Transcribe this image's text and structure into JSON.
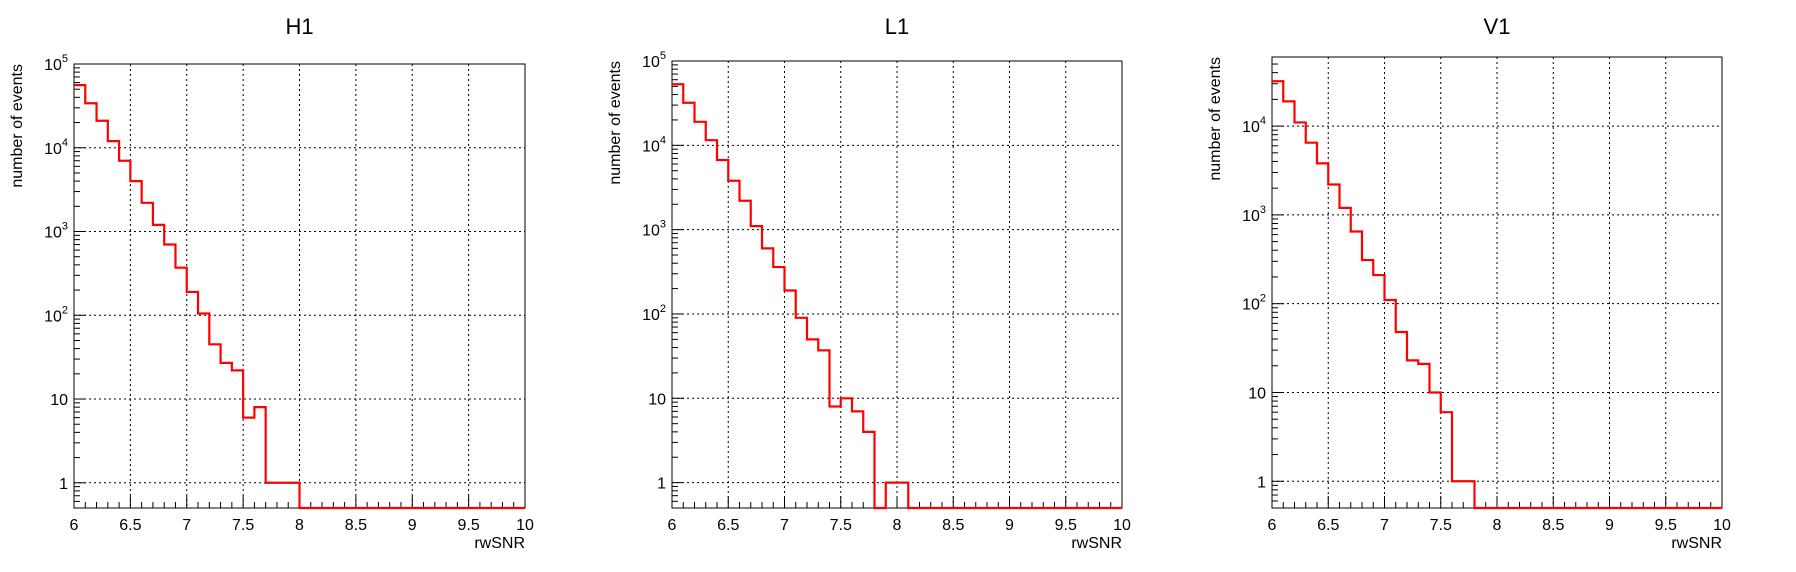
{
  "chart_data": [
    {
      "type": "line",
      "title": "H1",
      "xlabel": "rwSNR",
      "ylabel": "number of events",
      "xlim": [
        6,
        10
      ],
      "ylim": [
        0.5,
        100000
      ],
      "yscale": "log",
      "grid": true,
      "color": "#ff0000",
      "x_ticks": [
        "6",
        "6.5",
        "7",
        "7.5",
        "8",
        "8.5",
        "9",
        "9.5",
        "10"
      ],
      "y_ticks": [
        {
          "base": "1",
          "exp": ""
        },
        {
          "base": "10",
          "exp": ""
        },
        {
          "base": "10",
          "exp": "2"
        },
        {
          "base": "10",
          "exp": "3"
        },
        {
          "base": "10",
          "exp": "4"
        },
        {
          "base": "10",
          "exp": "5"
        }
      ],
      "bin_edges": [
        6.0,
        6.1,
        6.2,
        6.3,
        6.4,
        6.5,
        6.6,
        6.7,
        6.8,
        6.9,
        7.0,
        7.1,
        7.2,
        7.3,
        7.4,
        7.5,
        7.6,
        7.7,
        7.8,
        7.9,
        8.0
      ],
      "values": [
        56000,
        34000,
        21000,
        12000,
        7000,
        4000,
        2200,
        1200,
        700,
        370,
        190,
        105,
        45,
        27,
        22,
        6,
        8,
        1,
        1,
        1
      ]
    },
    {
      "type": "line",
      "title": "L1",
      "xlabel": "rwSNR",
      "ylabel": "number of events",
      "xlim": [
        6,
        10
      ],
      "ylim": [
        0.5,
        100000
      ],
      "yscale": "log",
      "grid": true,
      "color": "#ff0000",
      "x_ticks": [
        "6",
        "6.5",
        "7",
        "7.5",
        "8",
        "8.5",
        "9",
        "9.5",
        "10"
      ],
      "y_ticks": [
        {
          "base": "1",
          "exp": ""
        },
        {
          "base": "10",
          "exp": ""
        },
        {
          "base": "10",
          "exp": "2"
        },
        {
          "base": "10",
          "exp": "3"
        },
        {
          "base": "10",
          "exp": "4"
        },
        {
          "base": "10",
          "exp": "5"
        }
      ],
      "bin_edges": [
        6.0,
        6.1,
        6.2,
        6.3,
        6.4,
        6.5,
        6.6,
        6.7,
        6.8,
        6.9,
        7.0,
        7.1,
        7.2,
        7.3,
        7.4,
        7.5,
        7.6,
        7.7,
        7.8,
        7.9,
        8.0,
        8.1
      ],
      "values": [
        53000,
        32000,
        19000,
        11500,
        6700,
        3800,
        2200,
        1100,
        600,
        360,
        190,
        90,
        50,
        37,
        8,
        10,
        7,
        4,
        0,
        1,
        1
      ]
    },
    {
      "type": "line",
      "title": "V1",
      "xlabel": "rwSNR",
      "ylabel": "number of events",
      "xlim": [
        6,
        10
      ],
      "ylim": [
        0.5,
        60000
      ],
      "yscale": "log",
      "grid": true,
      "color": "#ff0000",
      "x_ticks": [
        "6",
        "6.5",
        "7",
        "7.5",
        "8",
        "8.5",
        "9",
        "9.5",
        "10"
      ],
      "y_ticks": [
        {
          "base": "1",
          "exp": ""
        },
        {
          "base": "10",
          "exp": ""
        },
        {
          "base": "10",
          "exp": "2"
        },
        {
          "base": "10",
          "exp": "3"
        },
        {
          "base": "10",
          "exp": "4"
        }
      ],
      "bin_edges": [
        6.0,
        6.1,
        6.2,
        6.3,
        6.4,
        6.5,
        6.6,
        6.7,
        6.8,
        6.9,
        7.0,
        7.1,
        7.2,
        7.3,
        7.4,
        7.5,
        7.6,
        7.7,
        7.8
      ],
      "values": [
        32000,
        19000,
        11000,
        6500,
        3800,
        2200,
        1200,
        650,
        310,
        210,
        110,
        48,
        23,
        21,
        10,
        6,
        1,
        1
      ]
    }
  ]
}
